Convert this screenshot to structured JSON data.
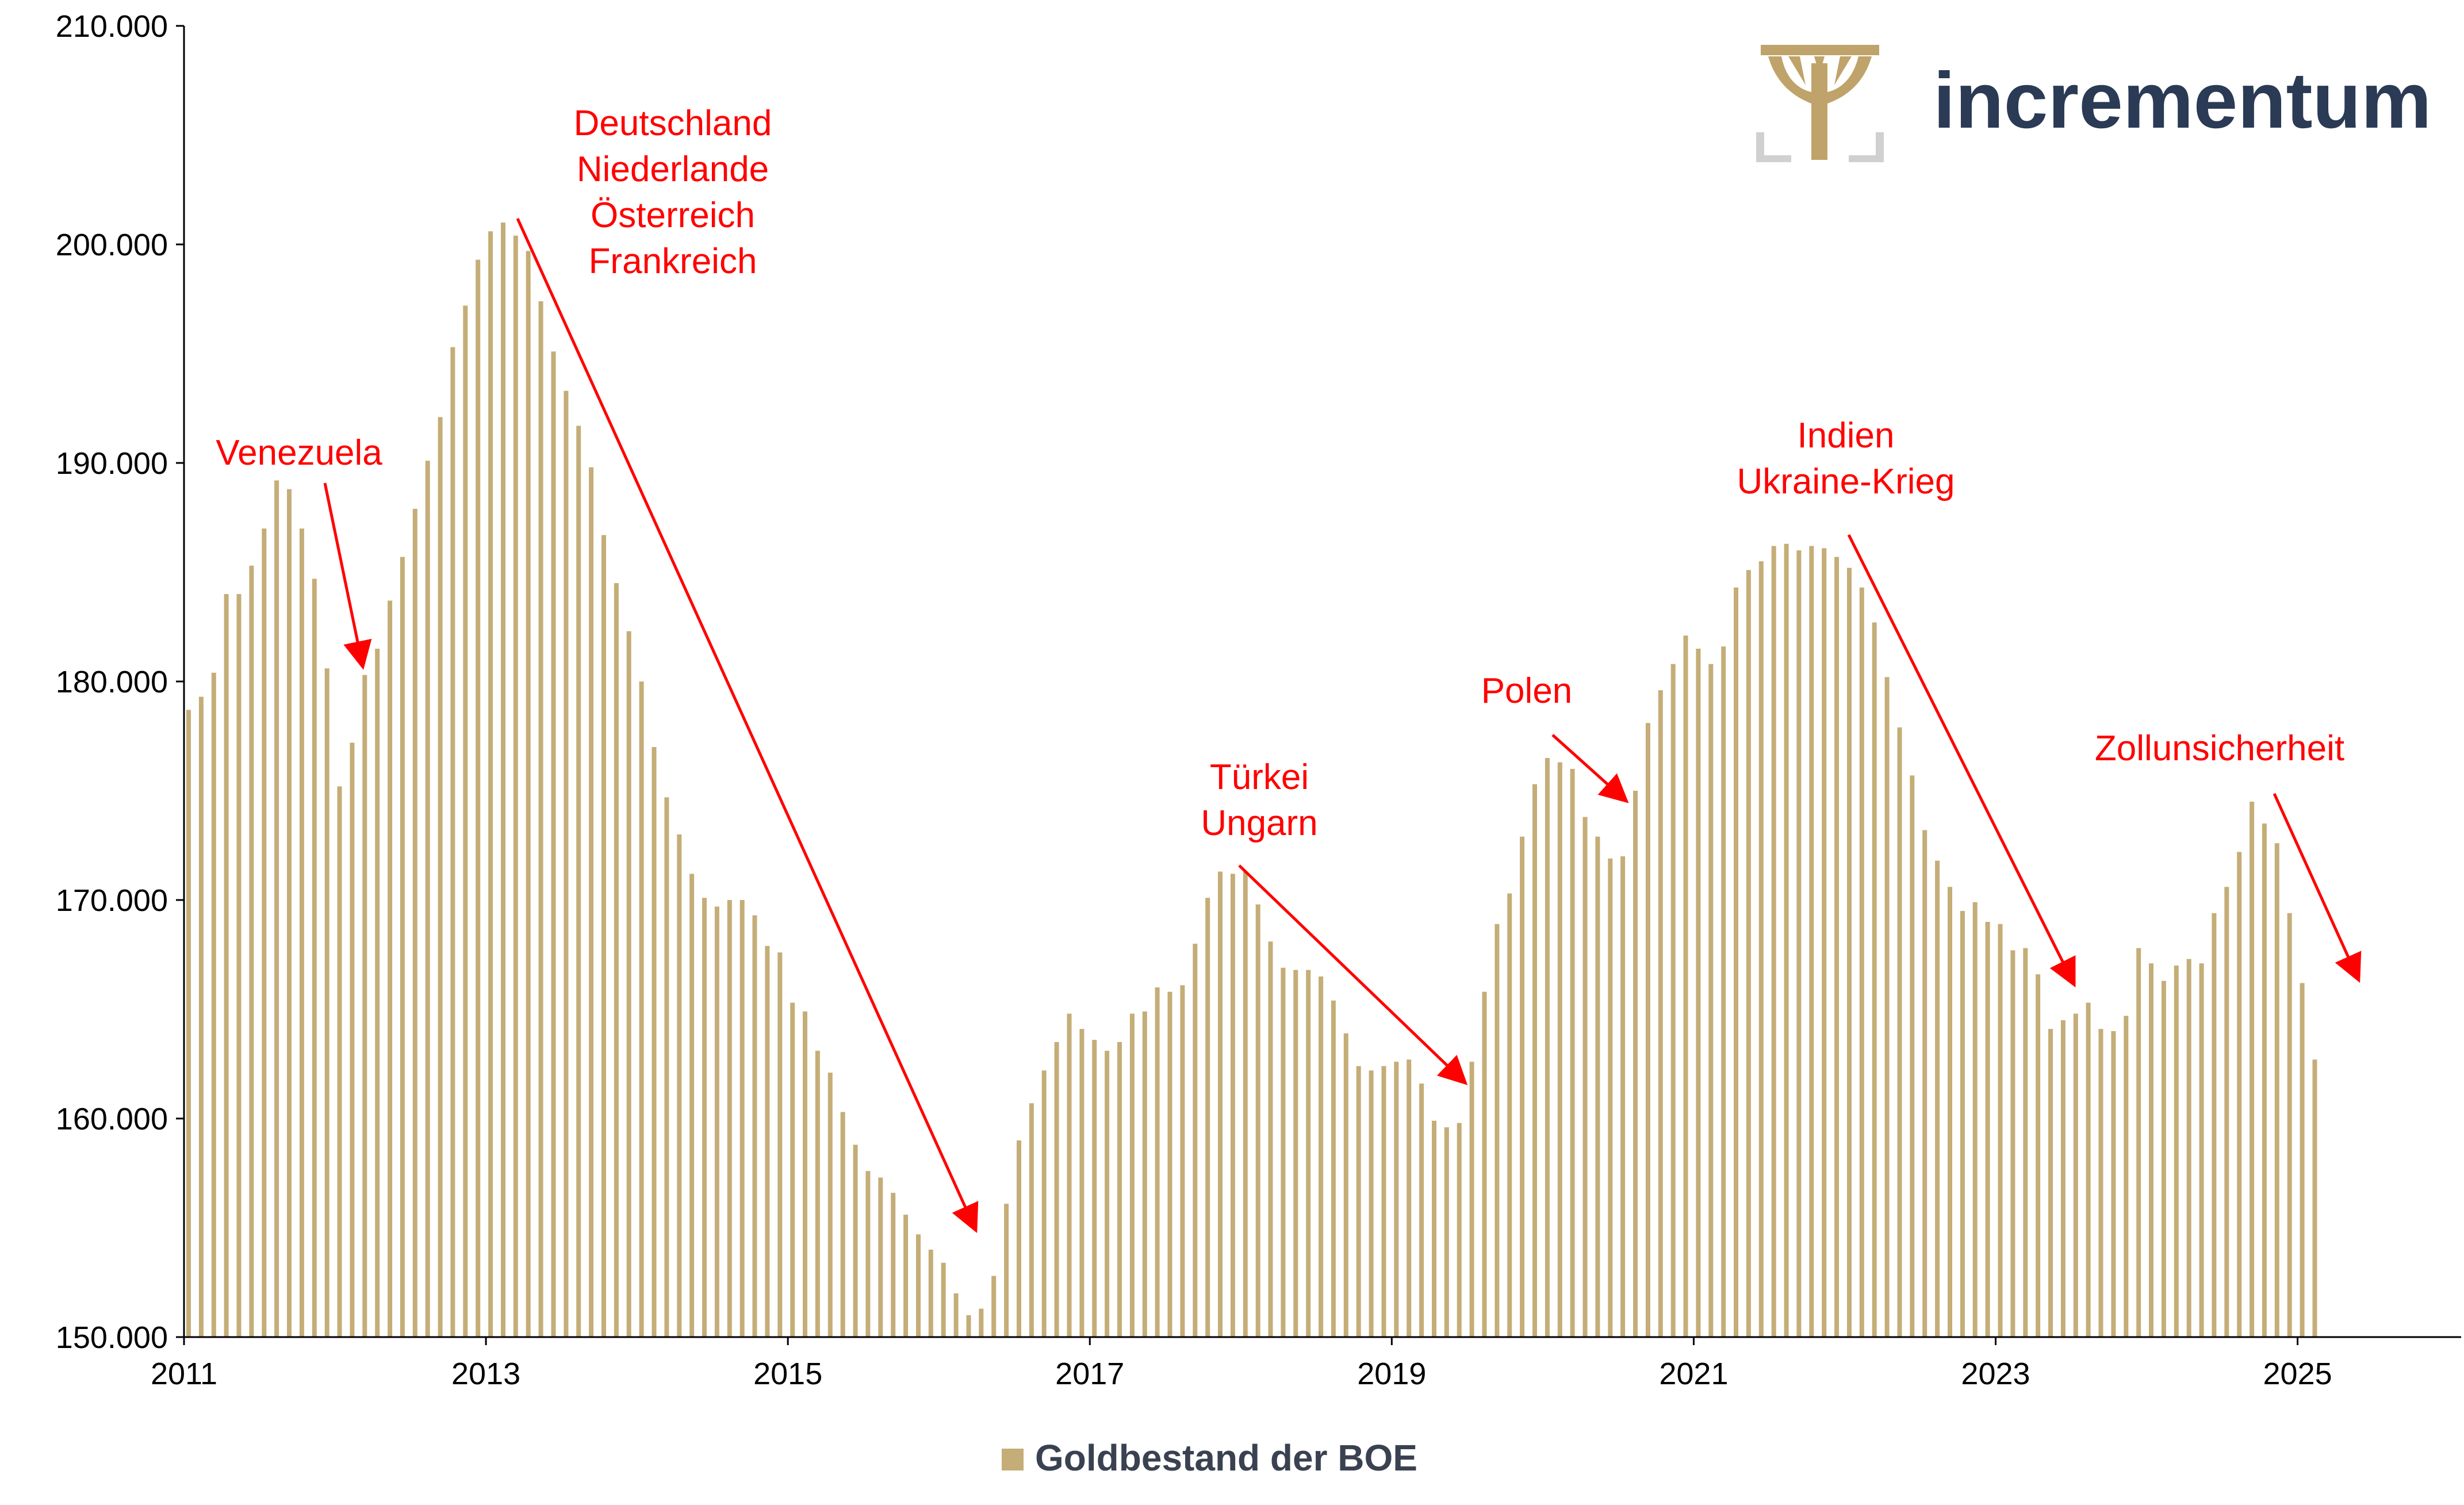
{
  "brand": {
    "name": "incrementum"
  },
  "colors": {
    "bar": "#c4ad77",
    "annotation": "#ff0000",
    "axis": "#000000",
    "brand": "#2b3a55",
    "logo": "#bfa36a"
  },
  "legend": {
    "label": "Goldbestand der BOE",
    "position": "bottom-center"
  },
  "chart_data": {
    "type": "bar",
    "title": "",
    "xlabel": "",
    "ylabel": "",
    "grid": false,
    "ylim": [
      150000,
      210000
    ],
    "yticks": [
      "150.000",
      "160.000",
      "170.000",
      "180.000",
      "190.000",
      "200.000",
      "210.000"
    ],
    "xticks": [
      "2011",
      "2013",
      "2015",
      "2017",
      "2019",
      "2021",
      "2023",
      "2025"
    ],
    "x_start": "2011-01",
    "x_end": "2026-02",
    "series": [
      {
        "name": "Goldbestand der BOE",
        "dates": [
          "2011-01",
          "2011-02",
          "2011-03",
          "2011-04",
          "2011-05",
          "2011-06",
          "2011-07",
          "2011-08",
          "2011-09",
          "2011-10",
          "2011-11",
          "2011-12",
          "2012-01",
          "2012-02",
          "2012-03",
          "2012-04",
          "2012-05",
          "2012-06",
          "2012-07",
          "2012-08",
          "2012-09",
          "2012-10",
          "2012-11",
          "2012-12",
          "2013-01",
          "2013-02",
          "2013-03",
          "2013-04",
          "2013-05",
          "2013-06",
          "2013-07",
          "2013-08",
          "2013-09",
          "2013-10",
          "2013-11",
          "2013-12",
          "2014-01",
          "2014-02",
          "2014-03",
          "2014-04",
          "2014-05",
          "2014-06",
          "2014-07",
          "2014-08",
          "2014-09",
          "2014-10",
          "2014-11",
          "2014-12",
          "2015-01",
          "2015-02",
          "2015-03",
          "2015-04",
          "2015-05",
          "2015-06",
          "2015-07",
          "2015-08",
          "2015-09",
          "2015-10",
          "2015-11",
          "2015-12",
          "2016-01",
          "2016-02",
          "2016-03",
          "2016-04",
          "2016-05",
          "2016-06",
          "2016-07",
          "2016-08",
          "2016-09",
          "2016-10",
          "2016-11",
          "2016-12",
          "2017-01",
          "2017-02",
          "2017-03",
          "2017-04",
          "2017-05",
          "2017-06",
          "2017-07",
          "2017-08",
          "2017-09",
          "2017-10",
          "2017-11",
          "2017-12",
          "2018-01",
          "2018-02",
          "2018-03",
          "2018-04",
          "2018-05",
          "2018-06",
          "2018-07",
          "2018-08",
          "2018-09",
          "2018-10",
          "2018-11",
          "2018-12",
          "2019-01",
          "2019-02",
          "2019-03",
          "2019-04",
          "2019-05",
          "2019-06",
          "2019-07",
          "2019-08",
          "2019-09",
          "2019-10",
          "2019-11",
          "2019-12",
          "2020-01",
          "2020-02",
          "2020-03",
          "2020-04",
          "2020-05",
          "2020-06",
          "2020-07",
          "2020-08",
          "2020-09",
          "2020-10",
          "2020-11",
          "2020-12",
          "2021-01",
          "2021-02",
          "2021-03",
          "2021-04",
          "2021-05",
          "2021-06",
          "2021-07",
          "2021-08",
          "2021-09",
          "2021-10",
          "2021-11",
          "2021-12",
          "2022-01",
          "2022-02",
          "2022-03",
          "2022-04",
          "2022-05",
          "2022-06",
          "2022-07",
          "2022-08",
          "2022-09",
          "2022-10",
          "2022-11",
          "2022-12",
          "2023-01",
          "2023-02",
          "2023-03",
          "2023-04",
          "2023-05",
          "2023-06",
          "2023-07",
          "2023-08",
          "2023-09",
          "2023-10",
          "2023-11",
          "2023-12",
          "2024-01",
          "2024-02",
          "2024-03",
          "2024-04",
          "2024-05",
          "2024-06",
          "2024-07",
          "2024-08",
          "2024-09",
          "2024-10",
          "2024-11",
          "2024-12",
          "2025-01",
          "2025-02"
        ],
        "values": [
          178700,
          179300,
          180400,
          184000,
          184000,
          185300,
          187000,
          189200,
          188800,
          187000,
          184700,
          180600,
          175200,
          177200,
          180300,
          181500,
          183700,
          185700,
          187900,
          190100,
          192100,
          195300,
          197200,
          199300,
          200600,
          201000,
          200400,
          199700,
          197400,
          195100,
          193300,
          191700,
          189800,
          186700,
          184500,
          182300,
          180000,
          177000,
          174700,
          173000,
          171200,
          170100,
          169700,
          170000,
          170000,
          169300,
          167900,
          167600,
          165300,
          164900,
          163100,
          162100,
          160300,
          158800,
          157600,
          157300,
          156600,
          155600,
          154700,
          154000,
          153400,
          152000,
          151000,
          151300,
          152800,
          156100,
          159000,
          160700,
          162200,
          163500,
          164800,
          164100,
          163600,
          163100,
          163500,
          164800,
          164900,
          166000,
          165800,
          166100,
          168000,
          170100,
          171300,
          171200,
          171300,
          169800,
          168100,
          166900,
          166800,
          166800,
          166500,
          165400,
          163900,
          162400,
          162200,
          162400,
          162600,
          162700,
          161600,
          159900,
          159600,
          159800,
          162600,
          165800,
          168900,
          170300,
          172900,
          175300,
          176500,
          176300,
          176000,
          173800,
          172900,
          171900,
          172000,
          175000,
          178100,
          179600,
          180800,
          182100,
          181500,
          180800,
          181600,
          184300,
          185100,
          185500,
          186200,
          186300,
          186000,
          186200,
          186100,
          185700,
          185200,
          184300,
          182700,
          180200,
          177900,
          175700,
          173200,
          171800,
          170600,
          169500,
          169900,
          169000,
          168900,
          167700,
          167800,
          166600,
          164100,
          164500,
          164800,
          165300,
          164100,
          164000,
          164700,
          167800,
          167100,
          166300,
          167000,
          167300,
          167100,
          169400,
          170600,
          172200,
          174500,
          173500,
          172600,
          169400,
          166200,
          162700
        ]
      }
    ],
    "annotations": [
      {
        "lines": [
          "Venezuela"
        ]
      },
      {
        "lines": [
          "Deutschland",
          "Niederlande",
          "Österreich",
          "Frankreich"
        ]
      },
      {
        "lines": [
          "Türkei",
          "Ungarn"
        ]
      },
      {
        "lines": [
          "Polen"
        ]
      },
      {
        "lines": [
          "Indien",
          "Ukraine-Krieg"
        ]
      },
      {
        "lines": [
          "Zollunsicherheit"
        ]
      }
    ]
  }
}
